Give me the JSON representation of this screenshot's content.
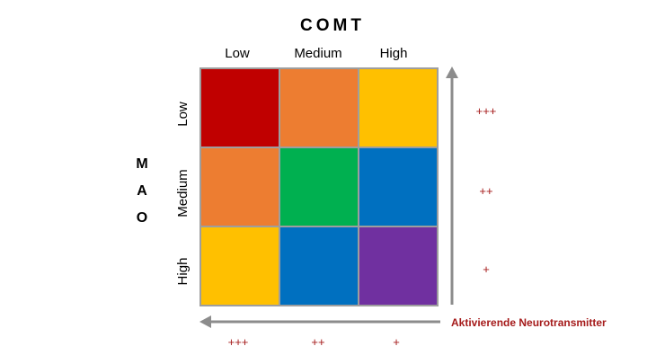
{
  "comt": {
    "title": "COMT",
    "columns": [
      "Low",
      "Medium",
      "High"
    ]
  },
  "mao": {
    "letters": [
      "M",
      "A",
      "O"
    ],
    "rows": [
      "Low",
      "Medium",
      "High"
    ]
  },
  "grid": {
    "colors": [
      [
        "#c00000",
        "#ed7d31",
        "#ffc000"
      ],
      [
        "#ed7d31",
        "#00b050",
        "#0070c0"
      ],
      [
        "#ffc000",
        "#0070c0",
        "#7030a0"
      ]
    ]
  },
  "right_scale": [
    "+++",
    "++",
    "+"
  ],
  "bottom_scale": [
    "+++",
    "++",
    "+"
  ],
  "legend": "Aktivierende Neurotransmitter",
  "colors": {
    "arrow": "#8c8c8c",
    "plus": "#a51a1a"
  }
}
